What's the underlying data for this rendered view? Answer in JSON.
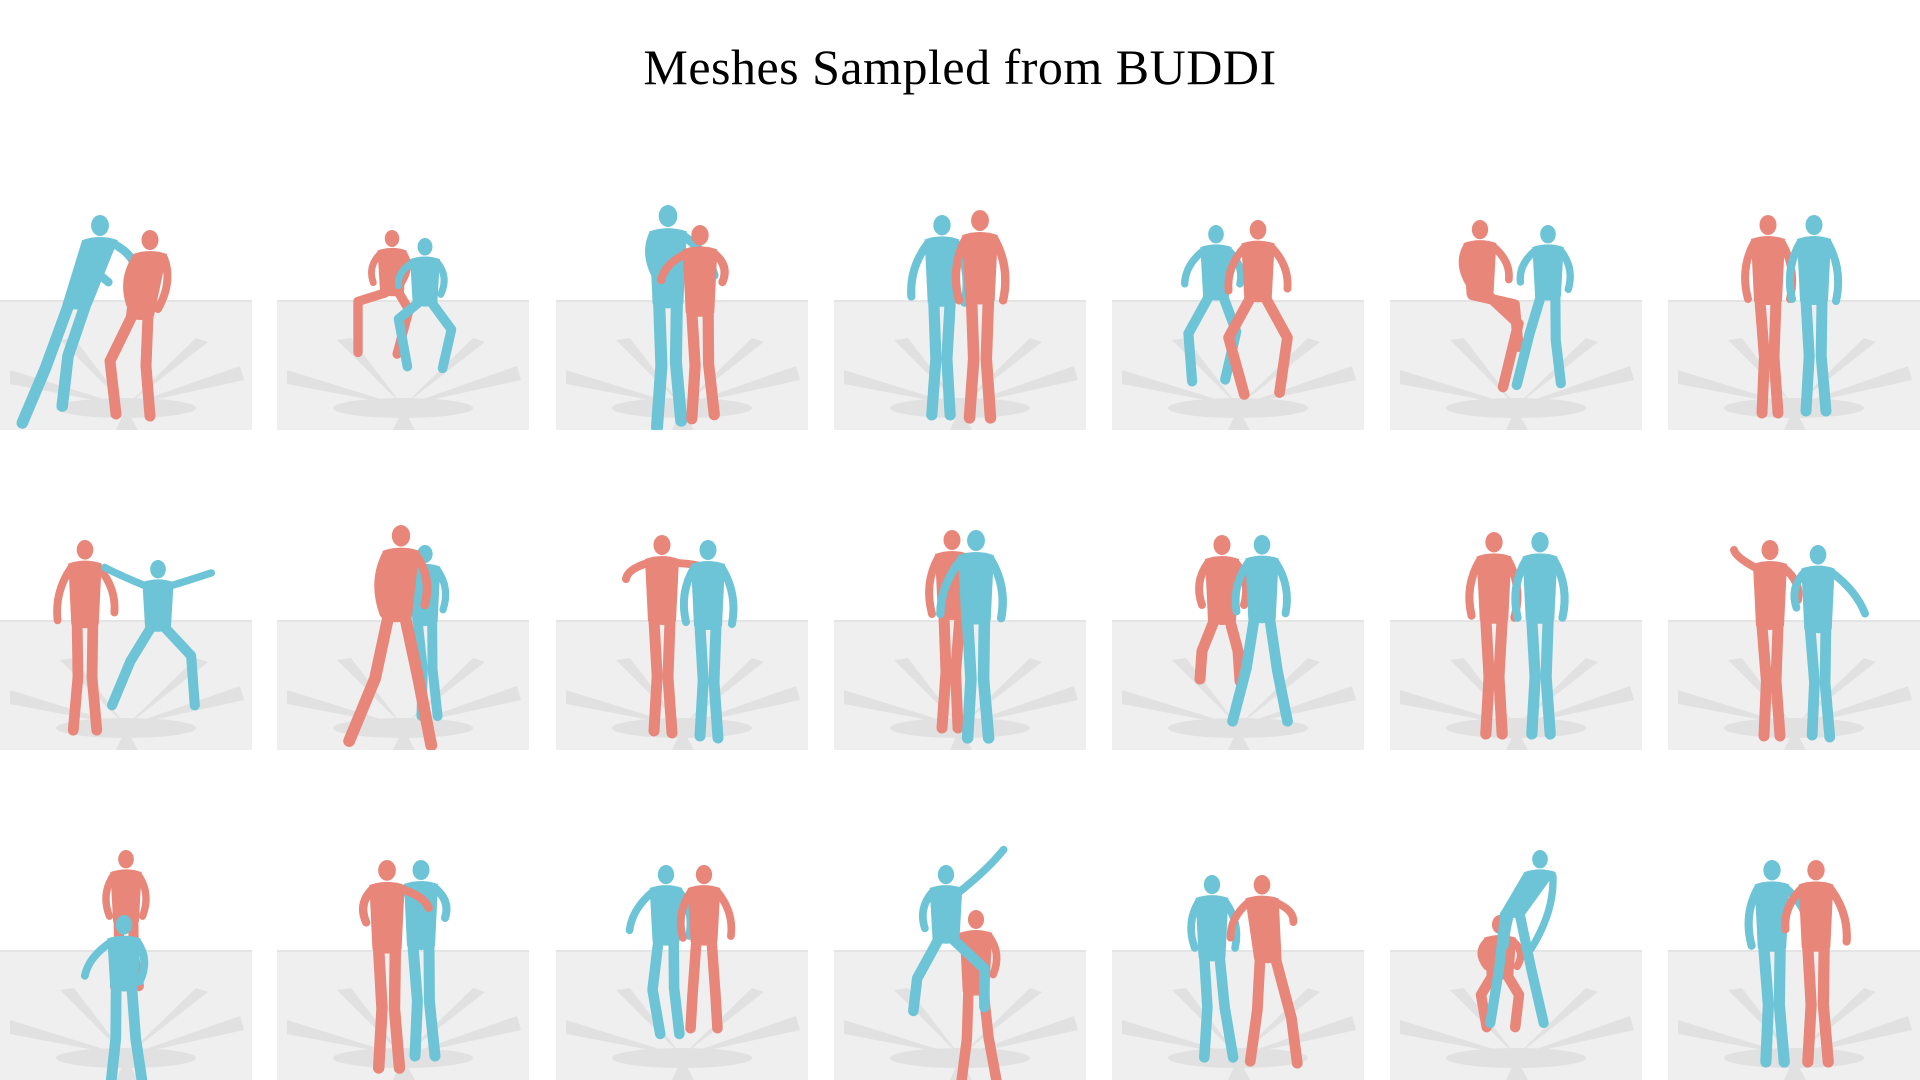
{
  "title": "Meshes Sampled from BUDDI",
  "colors": {
    "mesh_a": "#e8867a",
    "mesh_b": "#6cc4d6",
    "floor": "#efefef",
    "floor_edge": "#e4e4e4",
    "shadow": "#d6d6d6",
    "background": "#ffffff"
  },
  "samples": [
    {
      "row": 0,
      "col": 0,
      "pose": "one-leaning-over-other"
    },
    {
      "row": 0,
      "col": 1,
      "pose": "both-crouching"
    },
    {
      "row": 0,
      "col": 2,
      "pose": "embracing"
    },
    {
      "row": 0,
      "col": 3,
      "pose": "standing-side-by-side"
    },
    {
      "row": 0,
      "col": 4,
      "pose": "both-squatting"
    },
    {
      "row": 0,
      "col": 5,
      "pose": "sitting-and-crouching"
    },
    {
      "row": 0,
      "col": 6,
      "pose": "standing-side-by-side"
    },
    {
      "row": 1,
      "col": 0,
      "pose": "lunging"
    },
    {
      "row": 1,
      "col": 1,
      "pose": "stepping-back-to-back"
    },
    {
      "row": 1,
      "col": 2,
      "pose": "hand-on-shoulder"
    },
    {
      "row": 1,
      "col": 3,
      "pose": "overlapping-standing"
    },
    {
      "row": 1,
      "col": 4,
      "pose": "kneeling-and-standing"
    },
    {
      "row": 1,
      "col": 5,
      "pose": "standing-side-by-side"
    },
    {
      "row": 1,
      "col": 6,
      "pose": "waving-side-by-side"
    },
    {
      "row": 2,
      "col": 0,
      "pose": "carrying-on-back"
    },
    {
      "row": 2,
      "col": 1,
      "pose": "hugging-from-behind"
    },
    {
      "row": 2,
      "col": 2,
      "pose": "kneeling-pair"
    },
    {
      "row": 2,
      "col": 3,
      "pose": "piggyback-reaching-up"
    },
    {
      "row": 2,
      "col": 4,
      "pose": "falling-back"
    },
    {
      "row": 2,
      "col": 5,
      "pose": "bending-over"
    },
    {
      "row": 2,
      "col": 6,
      "pose": "standing-side-by-side"
    }
  ]
}
